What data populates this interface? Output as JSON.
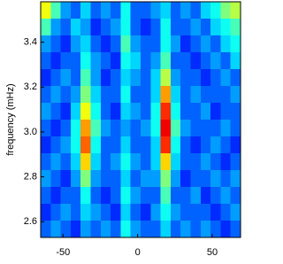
{
  "chart_data": {
    "type": "heatmap",
    "y_label": "frequency (mHz)",
    "xlim": [
      -65,
      69
    ],
    "ylim": [
      2.53,
      3.58
    ],
    "xticks": [
      -50,
      0,
      50
    ],
    "yticks": [
      2.6,
      2.8,
      {
        "value": 3,
        "label": "3.0"
      },
      3.2,
      3.4
    ],
    "colormap": "jet",
    "zlim": [
      0.1,
      1
    ],
    "z": [
      [
        0.65,
        0.5,
        0.35,
        0.3,
        0.4,
        0.3,
        0.35,
        0.3,
        0.45,
        0.3,
        0.3,
        0.35,
        0.4,
        0.3,
        0.35,
        0.3,
        0.4,
        0.45,
        0.55,
        0.6
      ],
      [
        0.5,
        0.35,
        0.3,
        0.4,
        0.35,
        0.25,
        0.3,
        0.35,
        0.45,
        0.3,
        0.25,
        0.3,
        0.45,
        0.3,
        0.3,
        0.35,
        0.3,
        0.4,
        0.45,
        0.5
      ],
      [
        0.35,
        0.3,
        0.25,
        0.35,
        0.4,
        0.3,
        0.25,
        0.3,
        0.5,
        0.35,
        0.3,
        0.3,
        0.45,
        0.35,
        0.25,
        0.3,
        0.35,
        0.3,
        0.4,
        0.45
      ],
      [
        0.3,
        0.25,
        0.3,
        0.3,
        0.45,
        0.35,
        0.3,
        0.25,
        0.45,
        0.4,
        0.3,
        0.35,
        0.5,
        0.3,
        0.3,
        0.25,
        0.3,
        0.35,
        0.3,
        0.4
      ],
      [
        0.25,
        0.3,
        0.35,
        0.3,
        0.5,
        0.35,
        0.25,
        0.3,
        0.4,
        0.35,
        0.3,
        0.4,
        0.6,
        0.35,
        0.3,
        0.3,
        0.25,
        0.3,
        0.35,
        0.3
      ],
      [
        0.3,
        0.35,
        0.3,
        0.35,
        0.55,
        0.4,
        0.3,
        0.3,
        0.45,
        0.3,
        0.3,
        0.4,
        0.75,
        0.4,
        0.3,
        0.35,
        0.3,
        0.3,
        0.3,
        0.35
      ],
      [
        0.35,
        0.3,
        0.25,
        0.4,
        0.65,
        0.45,
        0.3,
        0.25,
        0.4,
        0.35,
        0.3,
        0.45,
        0.85,
        0.45,
        0.3,
        0.3,
        0.35,
        0.25,
        0.3,
        0.3
      ],
      [
        0.3,
        0.25,
        0.3,
        0.45,
        0.75,
        0.5,
        0.35,
        0.3,
        0.35,
        0.3,
        0.35,
        0.45,
        0.9,
        0.5,
        0.35,
        0.3,
        0.3,
        0.3,
        0.35,
        0.3
      ],
      [
        0.25,
        0.3,
        0.35,
        0.45,
        0.8,
        0.45,
        0.3,
        0.3,
        0.4,
        0.3,
        0.3,
        0.4,
        0.85,
        0.45,
        0.3,
        0.25,
        0.3,
        0.35,
        0.3,
        0.25
      ],
      [
        0.3,
        0.35,
        0.3,
        0.4,
        0.7,
        0.4,
        0.3,
        0.35,
        0.45,
        0.35,
        0.3,
        0.4,
        0.7,
        0.4,
        0.3,
        0.3,
        0.35,
        0.3,
        0.25,
        0.3
      ],
      [
        0.35,
        0.3,
        0.25,
        0.35,
        0.55,
        0.35,
        0.3,
        0.3,
        0.4,
        0.3,
        0.35,
        0.35,
        0.55,
        0.35,
        0.25,
        0.3,
        0.3,
        0.35,
        0.3,
        0.35
      ],
      [
        0.3,
        0.25,
        0.3,
        0.3,
        0.45,
        0.3,
        0.25,
        0.3,
        0.45,
        0.35,
        0.3,
        0.3,
        0.5,
        0.3,
        0.3,
        0.35,
        0.25,
        0.3,
        0.35,
        0.3
      ],
      [
        0.25,
        0.3,
        0.35,
        0.3,
        0.4,
        0.35,
        0.3,
        0.25,
        0.4,
        0.3,
        0.25,
        0.35,
        0.45,
        0.35,
        0.3,
        0.3,
        0.3,
        0.25,
        0.3,
        0.35
      ],
      [
        0.3,
        0.35,
        0.3,
        0.25,
        0.35,
        0.3,
        0.35,
        0.3,
        0.45,
        0.35,
        0.3,
        0.3,
        0.4,
        0.3,
        0.35,
        0.3,
        0.35,
        0.3,
        0.25,
        0.3
      ]
    ]
  }
}
